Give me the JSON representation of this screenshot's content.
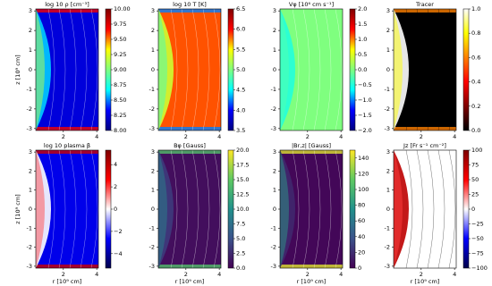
{
  "chart_data": [
    {
      "type": "image",
      "title": "log 10 ρ [cm⁻³]",
      "ylabel": "z [10⁹ cm]",
      "xlim": [
        0.35,
        4.1
      ],
      "xticks": [
        2,
        4
      ],
      "ylim": [
        -3.1,
        3.1
      ],
      "yticks": [
        -3,
        -2,
        -1,
        0,
        1,
        2,
        3
      ],
      "colormap": [
        "#00007f",
        "#0000ff",
        "#00ffff",
        "#7fff7f",
        "#ffff00",
        "#ff0000",
        "#7f0000"
      ],
      "clim": [
        8.0,
        10.0
      ],
      "cticks": [
        {
          "value": 8.0,
          "label": "8.00"
        },
        {
          "value": 8.25,
          "label": "8.25"
        },
        {
          "value": 8.5,
          "label": "8.50"
        },
        {
          "value": 8.75,
          "label": "8.75"
        },
        {
          "value": 9.0,
          "label": "9.00"
        },
        {
          "value": 9.25,
          "label": "9.25"
        },
        {
          "value": 9.5,
          "label": "9.50"
        },
        {
          "value": 9.75,
          "label": "9.75"
        },
        {
          "value": 10.0,
          "label": "10.00"
        }
      ]
    },
    {
      "type": "image",
      "title": "log 10  T [K]",
      "xlim": [
        0.35,
        4.1
      ],
      "xticks": [
        2,
        4
      ],
      "ylim": [
        -3.1,
        3.1
      ],
      "yticks": [
        -3,
        -2,
        -1,
        0,
        1,
        2,
        3
      ],
      "colormap": [
        "#00007f",
        "#0000ff",
        "#00ffff",
        "#7fff7f",
        "#ffff00",
        "#ff0000",
        "#7f0000"
      ],
      "clim": [
        3.5,
        6.5
      ],
      "cticks": [
        3.5,
        {
          "value": 4.0,
          "label": "4.0"
        },
        4.5,
        {
          "value": 5.0,
          "label": "5.0"
        },
        5.5,
        {
          "value": 6.0,
          "label": "6.0"
        },
        6.5
      ]
    },
    {
      "type": "image",
      "title": "Vφ [10⁶ cm s⁻¹]",
      "xlim": [
        0.35,
        4.1
      ],
      "xticks": [
        2,
        4
      ],
      "ylim": [
        -3.1,
        3.1
      ],
      "yticks": [
        -3,
        -2,
        -1,
        0,
        1,
        2,
        3
      ],
      "colormap": [
        "#00007f",
        "#0000ff",
        "#00ffff",
        "#7fff7f",
        "#ffff00",
        "#ff0000",
        "#7f0000"
      ],
      "clim": [
        -2.0,
        2.0
      ],
      "cticks": [
        {
          "value": -2.0,
          "label": "−2.0"
        },
        {
          "value": -1.5,
          "label": "−1.5"
        },
        {
          "value": -1.0,
          "label": "−1.0"
        },
        {
          "value": -0.5,
          "label": "−0.5"
        },
        {
          "value": 0.0,
          "label": "0.0"
        },
        0.5,
        {
          "value": 1.0,
          "label": "1.0"
        },
        1.5,
        {
          "value": 2.0,
          "label": "2.0"
        }
      ]
    },
    {
      "type": "image",
      "title": "Tracer",
      "xlim": [
        0.35,
        4.1
      ],
      "xticks": [
        2,
        4
      ],
      "ylim": [
        -3.1,
        3.1
      ],
      "yticks": [
        -3,
        -2,
        -1,
        0,
        1,
        2,
        3
      ],
      "colormap": [
        "#000000",
        "#800000",
        "#ff0000",
        "#ff8000",
        "#ffff00",
        "#ffffff"
      ],
      "clim": [
        0.0,
        1.0
      ],
      "cticks": [
        {
          "value": 0.0,
          "label": "0.0"
        },
        0.2,
        0.4,
        0.6,
        0.8,
        {
          "value": 1.0,
          "label": "1.0"
        }
      ]
    },
    {
      "type": "image",
      "title": "log 10 plasma β",
      "ylabel": "z [10⁹ cm]",
      "xlabel": "r [10⁹ cm]",
      "xlim": [
        0.35,
        4.1
      ],
      "xticks": [
        2,
        4
      ],
      "ylim": [
        -3.1,
        3.1
      ],
      "yticks": [
        -3,
        -2,
        -1,
        0,
        1,
        2,
        3
      ],
      "colormap": [
        "#00004c",
        "#0000ff",
        "#ffffff",
        "#ff0000",
        "#7f0000"
      ],
      "clim": [
        -5.3,
        5.3
      ],
      "cticks": [
        {
          "value": -4,
          "label": "−4"
        },
        {
          "value": -2,
          "label": "−2"
        },
        0,
        2,
        4
      ]
    },
    {
      "type": "image",
      "title": "Bφ [Gauss]",
      "xlabel": "r [10⁹ cm]",
      "xlim": [
        0.35,
        4.1
      ],
      "xticks": [
        2,
        4
      ],
      "ylim": [
        -3.1,
        3.1
      ],
      "yticks": [
        -3,
        -2,
        -1,
        0,
        1,
        2,
        3
      ],
      "colormap": [
        "#440154",
        "#3b528b",
        "#21918c",
        "#5ec962",
        "#fde725"
      ],
      "clim": [
        0.0,
        20.0
      ],
      "cticks": [
        {
          "value": 0.0,
          "label": "0.0"
        },
        2.5,
        {
          "value": 5.0,
          "label": "5.0"
        },
        7.5,
        {
          "value": 10.0,
          "label": "10.0"
        },
        12.5,
        {
          "value": 15.0,
          "label": "15.0"
        },
        17.5,
        {
          "value": 20.0,
          "label": "20.0"
        }
      ]
    },
    {
      "type": "image",
      "title": "|Br,z| [Gauss]",
      "xlabel": "r [10⁹ cm]",
      "xlim": [
        0.35,
        4.1
      ],
      "xticks": [
        2,
        4
      ],
      "ylim": [
        -3.1,
        3.1
      ],
      "yticks": [
        -3,
        -2,
        -1,
        0,
        1,
        2,
        3
      ],
      "colormap": [
        "#440154",
        "#3b528b",
        "#21918c",
        "#5ec962",
        "#fde725"
      ],
      "clim": [
        0,
        150
      ],
      "cticks": [
        0,
        20,
        40,
        60,
        80,
        100,
        120,
        140
      ]
    },
    {
      "type": "image",
      "title": "Jz [Fr s⁻¹ cm⁻²]",
      "xlabel": "r [10⁹ cm]",
      "xlim": [
        0.35,
        4.1
      ],
      "xticks": [
        2,
        4
      ],
      "ylim": [
        -3.1,
        3.1
      ],
      "yticks": [
        -3,
        -2,
        -1,
        0,
        1,
        2,
        3
      ],
      "colormap": [
        "#00004c",
        "#0000ff",
        "#ffffff",
        "#ff0000",
        "#7f0000"
      ],
      "clim": [
        -100,
        100
      ],
      "cticks": [
        {
          "value": -100,
          "label": "−100"
        },
        {
          "value": -75,
          "label": "−75"
        },
        {
          "value": -50,
          "label": "−50"
        },
        {
          "value": -25,
          "label": "−25"
        },
        0,
        25,
        50,
        75,
        100
      ]
    }
  ]
}
